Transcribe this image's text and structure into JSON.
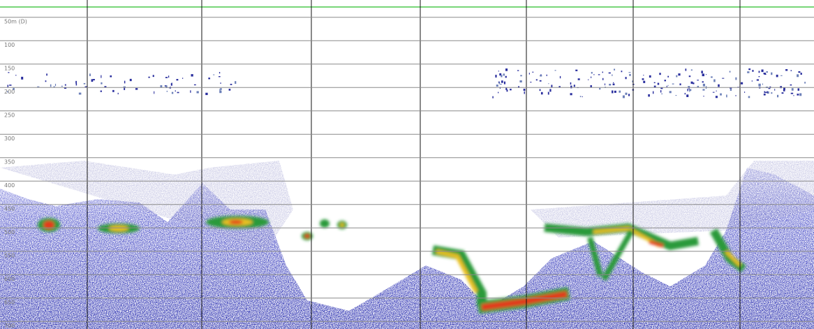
{
  "chart_data": {
    "type": "echogram",
    "ylim": [
      13,
      716
    ],
    "yticks": [
      {
        "value": 50,
        "label": "50m (D)"
      },
      100,
      150,
      200,
      250,
      300,
      350,
      400,
      450,
      500,
      550,
      600,
      650,
      700
    ],
    "grid": true
  }
}
